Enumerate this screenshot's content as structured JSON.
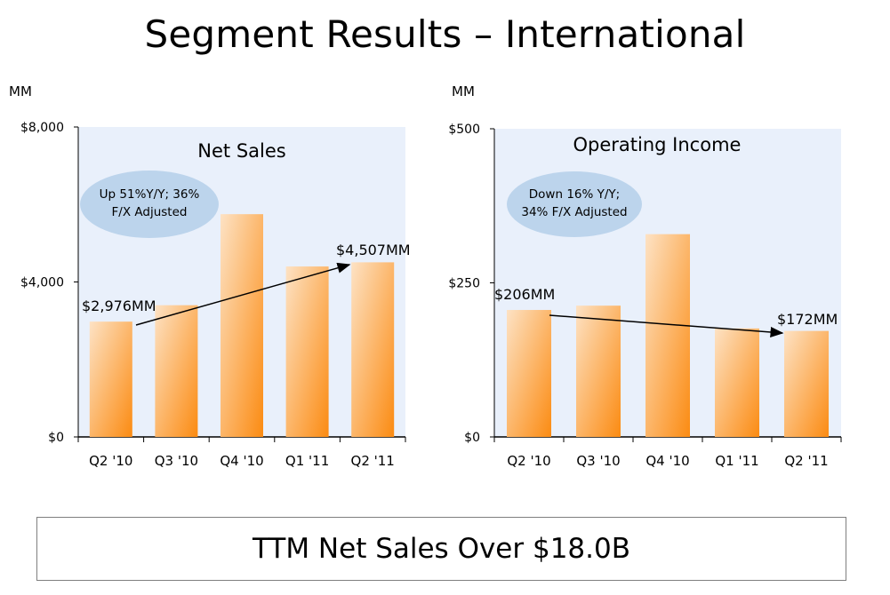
{
  "page": {
    "title": "Segment Results – International",
    "footer": "TTM Net Sales Over $18.0B"
  },
  "colors": {
    "plot_bg": "#e9f0fb",
    "bar_top": "#fde2c4",
    "bar_bottom": "#fb8b12",
    "callout": "#bcd4ec",
    "axis": "#000000"
  },
  "chart_data": [
    {
      "type": "bar",
      "title": "Net Sales",
      "units_label": "MM",
      "categories": [
        "Q2 '10",
        "Q3 '10",
        "Q4 '10",
        "Q1 '11",
        "Q2 '11"
      ],
      "values": [
        2976,
        3400,
        5750,
        4400,
        4507
      ],
      "ylim": [
        0,
        8000
      ],
      "yticks": [
        0,
        4000,
        8000
      ],
      "ytick_labels": [
        "$0",
        "$4,000",
        "$8,000"
      ],
      "callout": [
        "Up 51%Y/Y; 36%",
        "F/X Adjusted"
      ],
      "start_label": "$2,976MM",
      "end_label": "$4,507MM",
      "trend": "up"
    },
    {
      "type": "bar",
      "title": "Operating Income",
      "units_label": "MM",
      "categories": [
        "Q2 '10",
        "Q3 '10",
        "Q4 '10",
        "Q1 '11",
        "Q2 '11"
      ],
      "values": [
        206,
        213,
        329,
        176,
        172
      ],
      "ylim": [
        0,
        500
      ],
      "yticks": [
        0,
        250,
        500
      ],
      "ytick_labels": [
        "$0",
        "$250",
        "$500"
      ],
      "callout": [
        "Down 16% Y/Y;",
        "34% F/X Adjusted"
      ],
      "start_label": "$206MM",
      "end_label": "$172MM",
      "trend": "down"
    }
  ]
}
